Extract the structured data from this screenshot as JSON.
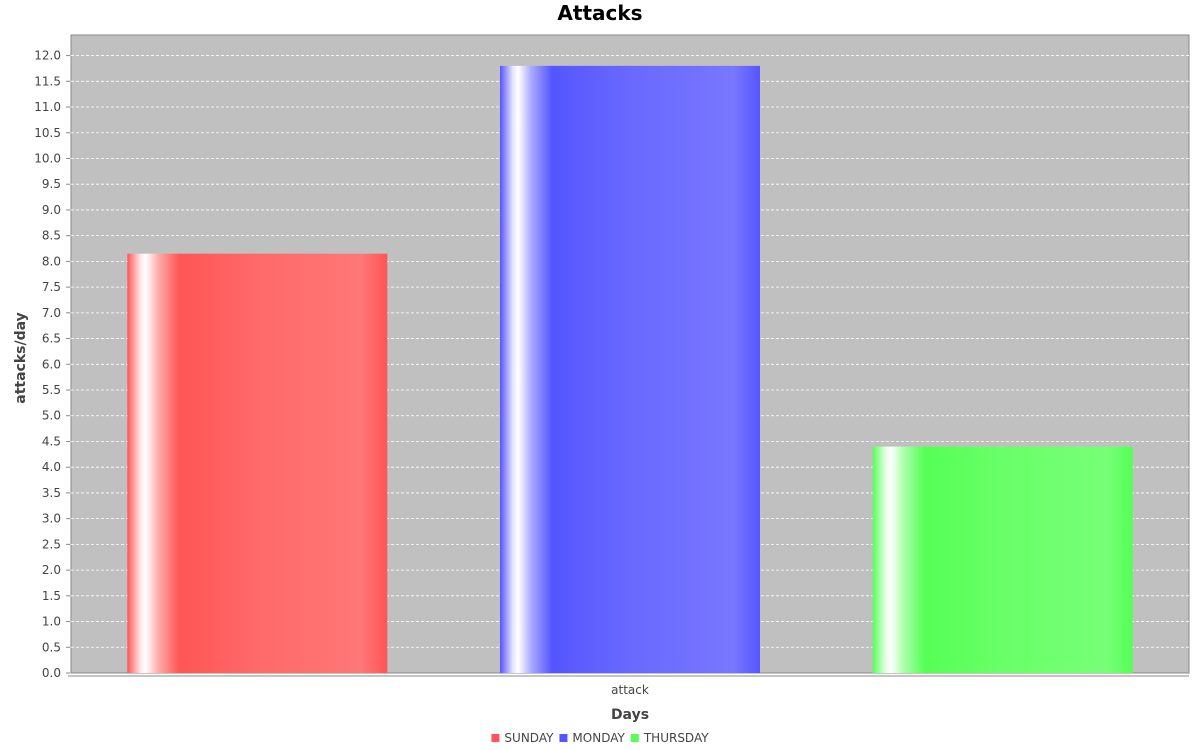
{
  "chart_data": {
    "type": "bar",
    "title": "Attacks",
    "xlabel": "Days",
    "ylabel": "attacks/day",
    "categories": [
      "attack"
    ],
    "series": [
      {
        "name": "SUNDAY",
        "values": [
          8.15
        ],
        "color": "#ff5555"
      },
      {
        "name": "MONDAY",
        "values": [
          11.8
        ],
        "color": "#5555ff"
      },
      {
        "name": "THURSDAY",
        "values": [
          4.4
        ],
        "color": "#55ff55"
      }
    ],
    "ylim": [
      0,
      12.4
    ],
    "yticks": [
      "0.0",
      "0.5",
      "1.0",
      "1.5",
      "2.0",
      "2.5",
      "3.0",
      "3.5",
      "4.0",
      "4.5",
      "5.0",
      "5.5",
      "6.0",
      "6.5",
      "7.0",
      "7.5",
      "8.0",
      "8.5",
      "9.0",
      "9.5",
      "10.0",
      "10.5",
      "11.0",
      "11.5",
      "12.0"
    ],
    "grid": true,
    "plot_background": "#c0c0c0",
    "legend_position": "bottom"
  }
}
